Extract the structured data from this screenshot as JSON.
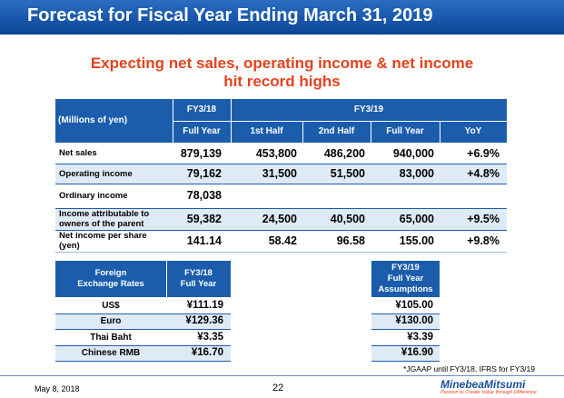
{
  "title": "Forecast for Fiscal Year Ending March 31, 2019",
  "subtitle": [
    "Expecting net sales, operating income & net income",
    "hit record highs"
  ],
  "main_table": {
    "unit_label": "(Millions of yen)",
    "group_fy18": "FY3/18",
    "group_fy19": "FY3/19",
    "sub_fy18": "Full Year",
    "sub_fy19": [
      "1st Half",
      "2nd Half",
      "Full Year",
      "YoY"
    ],
    "rows": [
      {
        "label": "Net sales",
        "fy18": "879,139",
        "h1": "453,800",
        "h2": "486,200",
        "fy": "940,000",
        "yoy": "+6.9%"
      },
      {
        "label": "Operating income",
        "fy18": "79,162",
        "h1": "31,500",
        "h2": "51,500",
        "fy": "83,000",
        "yoy": "+4.8%"
      },
      {
        "label": "Ordinary income",
        "fy18": "78,038",
        "h1": "",
        "h2": "",
        "fy": "",
        "yoy": ""
      },
      {
        "label": "Income attributable to owners of the parent",
        "fy18": "59,382",
        "h1": "24,500",
        "h2": "40,500",
        "fy": "65,000",
        "yoy": "+9.5%"
      },
      {
        "label": "Net income per share (yen)",
        "fy18": "141.14",
        "h1": "58.42",
        "h2": "96.58",
        "fy": "155.00",
        "yoy": "+9.8%"
      }
    ]
  },
  "fx_table": {
    "header_label": [
      "Foreign",
      "Exchange Rates"
    ],
    "header_fy18": [
      "FY3/18",
      "Full Year"
    ],
    "header_fy19": [
      "FY3/19",
      "Full Year",
      "Assumptions"
    ],
    "rows": [
      {
        "label": "US$",
        "fy18": "¥111.19",
        "fy19": "¥105.00"
      },
      {
        "label": "Euro",
        "fy18": "¥129.36",
        "fy19": "¥130.00"
      },
      {
        "label": "Thai Baht",
        "fy18": "¥3.35",
        "fy19": "¥3.39"
      },
      {
        "label": "Chinese RMB",
        "fy18": "¥16.70",
        "fy19": "¥16.90"
      }
    ]
  },
  "footnote": "*JGAAP until FY3/18, IFRS for FY3/19",
  "footer": {
    "date": "May 8, 2018",
    "page": "22",
    "logo": "MinebeaMitsumi",
    "tagline": "Passion to Create Value through Difference"
  },
  "colors": {
    "header_blue": "#1b5dac",
    "row_tint": "#dfeaf7",
    "accent_red": "#e6411d"
  }
}
